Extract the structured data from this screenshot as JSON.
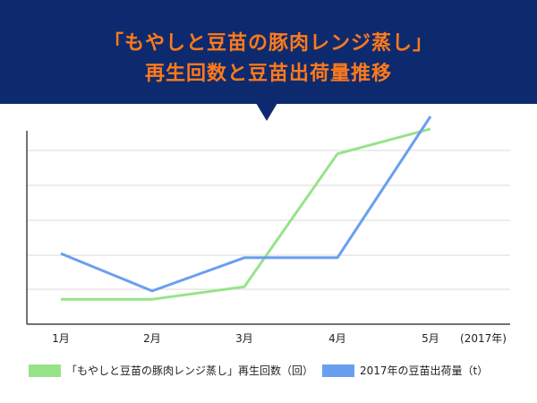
{
  "header": {
    "title_line1": "「もやしと豆苗の豚肉レンジ蒸し」",
    "title_line2": "再生回数と豆苗出荷量推移"
  },
  "colors": {
    "banner_bg": "#0e2a6e",
    "title_text": "#ff7a1a",
    "series_green": "#97e38a",
    "series_blue": "#6a9ef0",
    "grid": "#d9d9d9",
    "axis": "#444444"
  },
  "chart_data": {
    "type": "line",
    "categories": [
      "1月",
      "2月",
      "3月",
      "4月",
      "5月"
    ],
    "x_unit_label": "(2017年)",
    "title": "「もやしと豆苗の豚肉レンジ蒸し」\n再生回数と豆苗出荷量推移",
    "xlabel": "",
    "ylabel": "",
    "ylim": [
      0,
      5
    ],
    "y_ticks_visible": false,
    "grid": true,
    "legend_position": "bottom",
    "series": [
      {
        "name": "「もやしと豆苗の豚肉レンジ蒸し」再生回数（回）",
        "color": "#97e38a",
        "values": [
          0.6,
          0.6,
          0.9,
          4.1,
          4.7
        ]
      },
      {
        "name": "2017年の豆苗出荷量（t）",
        "color": "#6a9ef0",
        "values": [
          1.7,
          0.8,
          1.6,
          1.6,
          5.0
        ]
      }
    ]
  }
}
